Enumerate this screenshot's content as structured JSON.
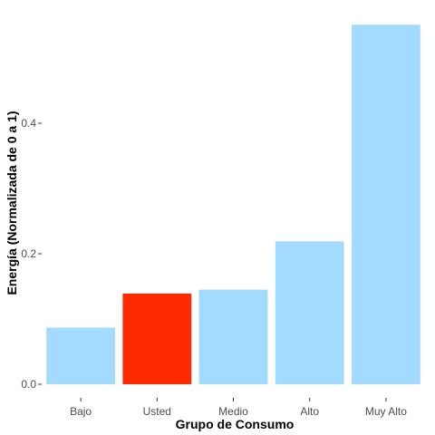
{
  "chart_data": {
    "type": "bar",
    "title": "",
    "xlabel": "Grupo de Consumo",
    "ylabel": "Energía (Normalizada de 0 a 1)",
    "categories": [
      "Bajo",
      "Usted",
      "Medio",
      "Alto",
      "Muy Alto"
    ],
    "values": [
      0.087,
      0.139,
      0.145,
      0.219,
      0.551
    ],
    "colors": [
      "#a3daff",
      "#ff2a00",
      "#a3daff",
      "#a3daff",
      "#a3daff"
    ],
    "highlight_category": "Usted",
    "ylim": [
      0,
      0.575
    ],
    "y_ticks": [
      0.0,
      0.2,
      0.4
    ],
    "y_tick_labels": [
      "0.0",
      "0.2",
      "0.4"
    ],
    "grid": false,
    "legend": "none"
  }
}
